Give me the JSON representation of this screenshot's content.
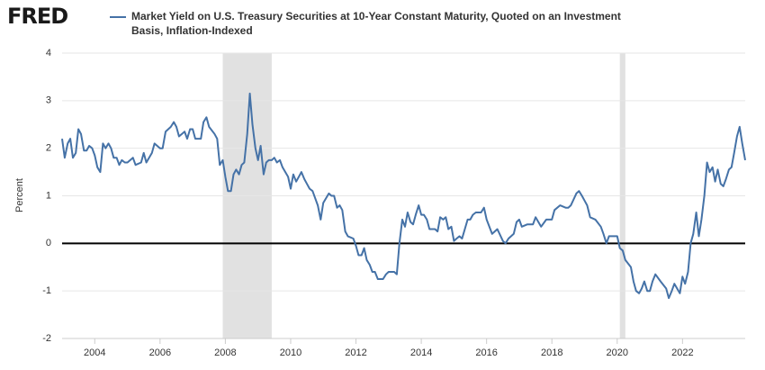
{
  "logo": "FRED",
  "chart_data": {
    "type": "line",
    "title": "Market Yield on U.S. Treasury Securities at 10-Year Constant Maturity, Quoted on an Investment Basis, Inflation-Indexed",
    "y_label": "Percent",
    "xlim": [
      2003,
      2023.92
    ],
    "xticks": [
      2004,
      2006,
      2008,
      2010,
      2012,
      2014,
      2016,
      2018,
      2020,
      2022
    ],
    "ylim": [
      -2,
      4
    ],
    "yticks": [
      -2,
      -1,
      0,
      1,
      2,
      3,
      4
    ],
    "grid": true,
    "recessions": [
      [
        2007.92,
        2009.42
      ],
      [
        2020.08,
        2020.25
      ]
    ],
    "series": [
      {
        "name": "Market Yield on U.S. Treasury Securities at 10-Year Constant Maturity, Quoted on an Investment Basis, Inflation-Indexed",
        "color": "#4572a7",
        "x": [
          2003.0,
          2003.08,
          2003.17,
          2003.25,
          2003.33,
          2003.42,
          2003.5,
          2003.58,
          2003.67,
          2003.75,
          2003.83,
          2003.92,
          2004.0,
          2004.08,
          2004.17,
          2004.25,
          2004.33,
          2004.42,
          2004.5,
          2004.58,
          2004.67,
          2004.75,
          2004.83,
          2004.92,
          2005.0,
          2005.17,
          2005.25,
          2005.42,
          2005.5,
          2005.58,
          2005.75,
          2005.83,
          2006.0,
          2006.08,
          2006.17,
          2006.33,
          2006.42,
          2006.5,
          2006.58,
          2006.75,
          2006.83,
          2006.92,
          2007.0,
          2007.08,
          2007.25,
          2007.33,
          2007.42,
          2007.5,
          2007.67,
          2007.75,
          2007.83,
          2007.92,
          2008.0,
          2008.08,
          2008.17,
          2008.25,
          2008.33,
          2008.42,
          2008.5,
          2008.58,
          2008.67,
          2008.75,
          2008.83,
          2008.92,
          2009.0,
          2009.08,
          2009.17,
          2009.25,
          2009.33,
          2009.42,
          2009.5,
          2009.58,
          2009.67,
          2009.75,
          2009.92,
          2010.0,
          2010.08,
          2010.17,
          2010.33,
          2010.42,
          2010.5,
          2010.58,
          2010.67,
          2010.83,
          2010.92,
          2011.0,
          2011.17,
          2011.25,
          2011.33,
          2011.42,
          2011.5,
          2011.58,
          2011.67,
          2011.75,
          2011.92,
          2012.0,
          2012.08,
          2012.17,
          2012.25,
          2012.33,
          2012.42,
          2012.5,
          2012.58,
          2012.67,
          2012.83,
          2012.92,
          2013.0,
          2013.17,
          2013.25,
          2013.33,
          2013.42,
          2013.5,
          2013.58,
          2013.67,
          2013.75,
          2013.83,
          2013.92,
          2014.0,
          2014.08,
          2014.17,
          2014.25,
          2014.42,
          2014.5,
          2014.58,
          2014.67,
          2014.75,
          2014.83,
          2014.92,
          2015.0,
          2015.08,
          2015.17,
          2015.25,
          2015.42,
          2015.5,
          2015.58,
          2015.67,
          2015.83,
          2015.92,
          2016.0,
          2016.17,
          2016.33,
          2016.5,
          2016.58,
          2016.67,
          2016.83,
          2016.92,
          2017.0,
          2017.08,
          2017.25,
          2017.42,
          2017.5,
          2017.67,
          2017.83,
          2018.0,
          2018.08,
          2018.25,
          2018.42,
          2018.5,
          2018.58,
          2018.75,
          2018.83,
          2018.92,
          2019.0,
          2019.08,
          2019.17,
          2019.33,
          2019.5,
          2019.58,
          2019.67,
          2019.75,
          2019.92,
          2020.0,
          2020.08,
          2020.17,
          2020.25,
          2020.42,
          2020.5,
          2020.58,
          2020.67,
          2020.75,
          2020.83,
          2020.92,
          2021.0,
          2021.08,
          2021.17,
          2021.33,
          2021.5,
          2021.58,
          2021.67,
          2021.75,
          2021.92,
          2022.0,
          2022.08,
          2022.17,
          2022.25,
          2022.33,
          2022.42,
          2022.5,
          2022.58,
          2022.67,
          2022.75,
          2022.83,
          2022.92,
          2023.0,
          2023.08,
          2023.17,
          2023.25,
          2023.33,
          2023.42,
          2023.5,
          2023.58,
          2023.67,
          2023.75,
          2023.83,
          2023.92
        ],
        "values": [
          2.2,
          1.8,
          2.1,
          2.2,
          1.8,
          1.9,
          2.4,
          2.3,
          1.95,
          1.95,
          2.05,
          2.0,
          1.85,
          1.6,
          1.5,
          2.1,
          2.0,
          2.1,
          2.0,
          1.8,
          1.8,
          1.65,
          1.75,
          1.7,
          1.7,
          1.8,
          1.65,
          1.7,
          1.9,
          1.7,
          1.9,
          2.1,
          2.0,
          2.0,
          2.35,
          2.45,
          2.55,
          2.45,
          2.25,
          2.35,
          2.2,
          2.4,
          2.4,
          2.2,
          2.2,
          2.55,
          2.65,
          2.45,
          2.3,
          2.2,
          1.65,
          1.75,
          1.4,
          1.1,
          1.1,
          1.45,
          1.55,
          1.45,
          1.65,
          1.7,
          2.3,
          3.15,
          2.5,
          2.0,
          1.75,
          2.05,
          1.45,
          1.7,
          1.75,
          1.75,
          1.8,
          1.7,
          1.75,
          1.6,
          1.4,
          1.15,
          1.45,
          1.3,
          1.5,
          1.35,
          1.25,
          1.15,
          1.1,
          0.8,
          0.5,
          0.85,
          1.05,
          1.0,
          1.0,
          0.75,
          0.8,
          0.7,
          0.25,
          0.15,
          0.1,
          -0.05,
          -0.25,
          -0.25,
          -0.1,
          -0.35,
          -0.45,
          -0.6,
          -0.6,
          -0.75,
          -0.75,
          -0.65,
          -0.6,
          -0.6,
          -0.65,
          0.0,
          0.5,
          0.35,
          0.65,
          0.45,
          0.4,
          0.6,
          0.8,
          0.6,
          0.6,
          0.5,
          0.3,
          0.3,
          0.25,
          0.55,
          0.5,
          0.55,
          0.3,
          0.35,
          0.05,
          0.1,
          0.15,
          0.1,
          0.5,
          0.5,
          0.6,
          0.65,
          0.65,
          0.75,
          0.5,
          0.2,
          0.3,
          0.05,
          0.0,
          0.1,
          0.2,
          0.45,
          0.5,
          0.35,
          0.4,
          0.4,
          0.55,
          0.35,
          0.5,
          0.5,
          0.7,
          0.8,
          0.75,
          0.75,
          0.8,
          1.05,
          1.1,
          1.0,
          0.9,
          0.8,
          0.55,
          0.5,
          0.35,
          0.2,
          0.0,
          0.15,
          0.15,
          0.15,
          -0.1,
          -0.15,
          -0.35,
          -0.5,
          -0.8,
          -1.0,
          -1.05,
          -0.95,
          -0.8,
          -1.0,
          -1.0,
          -0.8,
          -0.65,
          -0.8,
          -0.95,
          -1.15,
          -1.0,
          -0.85,
          -1.05,
          -0.7,
          -0.85,
          -0.6,
          0.0,
          0.2,
          0.65,
          0.15,
          0.5,
          1.0,
          1.7,
          1.5,
          1.6,
          1.3,
          1.55,
          1.25,
          1.2,
          1.35,
          1.55,
          1.6,
          1.9,
          2.25,
          2.45,
          2.1,
          1.75
        ]
      }
    ]
  }
}
